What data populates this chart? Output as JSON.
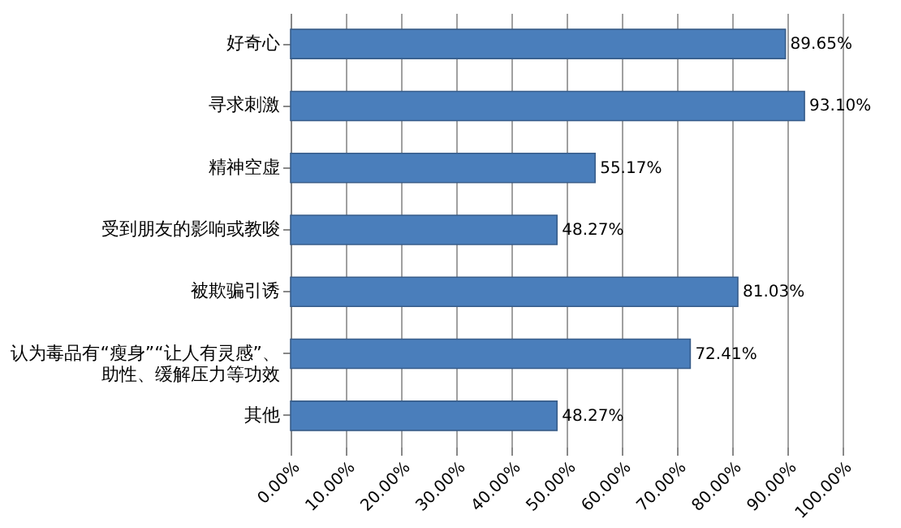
{
  "chart_data": {
    "type": "bar",
    "orientation": "horizontal",
    "categories": [
      "好奇心",
      "寻求刺激",
      "精神空虚",
      "受到朋友的影响或教唆",
      "被欺骗引诱",
      "认为毒品有“瘦身”“让人有灵感”、助性、缓解压力等功效",
      "其他"
    ],
    "values": [
      89.65,
      93.1,
      55.17,
      48.27,
      81.03,
      72.41,
      48.27
    ],
    "value_labels": [
      "89.65%",
      "93.10%",
      "55.17%",
      "48.27%",
      "81.03%",
      "72.41%",
      "48.27%"
    ],
    "color": "#4a7ebb",
    "xlim": [
      0,
      100
    ],
    "xticks": [
      {
        "value": 0,
        "label": "0.00%"
      },
      {
        "value": 10,
        "label": "10.00%"
      },
      {
        "value": 20,
        "label": "20.00%"
      },
      {
        "value": 30,
        "label": "30.00%"
      },
      {
        "value": 40,
        "label": "40.00%"
      },
      {
        "value": 50,
        "label": "50.00%"
      },
      {
        "value": 60,
        "label": "60.00%"
      },
      {
        "value": 70,
        "label": "70.00%"
      },
      {
        "value": 80,
        "label": "80.00%"
      },
      {
        "value": 90,
        "label": "90.00%"
      },
      {
        "value": 100,
        "label": "100.00%"
      }
    ],
    "grid": "x"
  }
}
